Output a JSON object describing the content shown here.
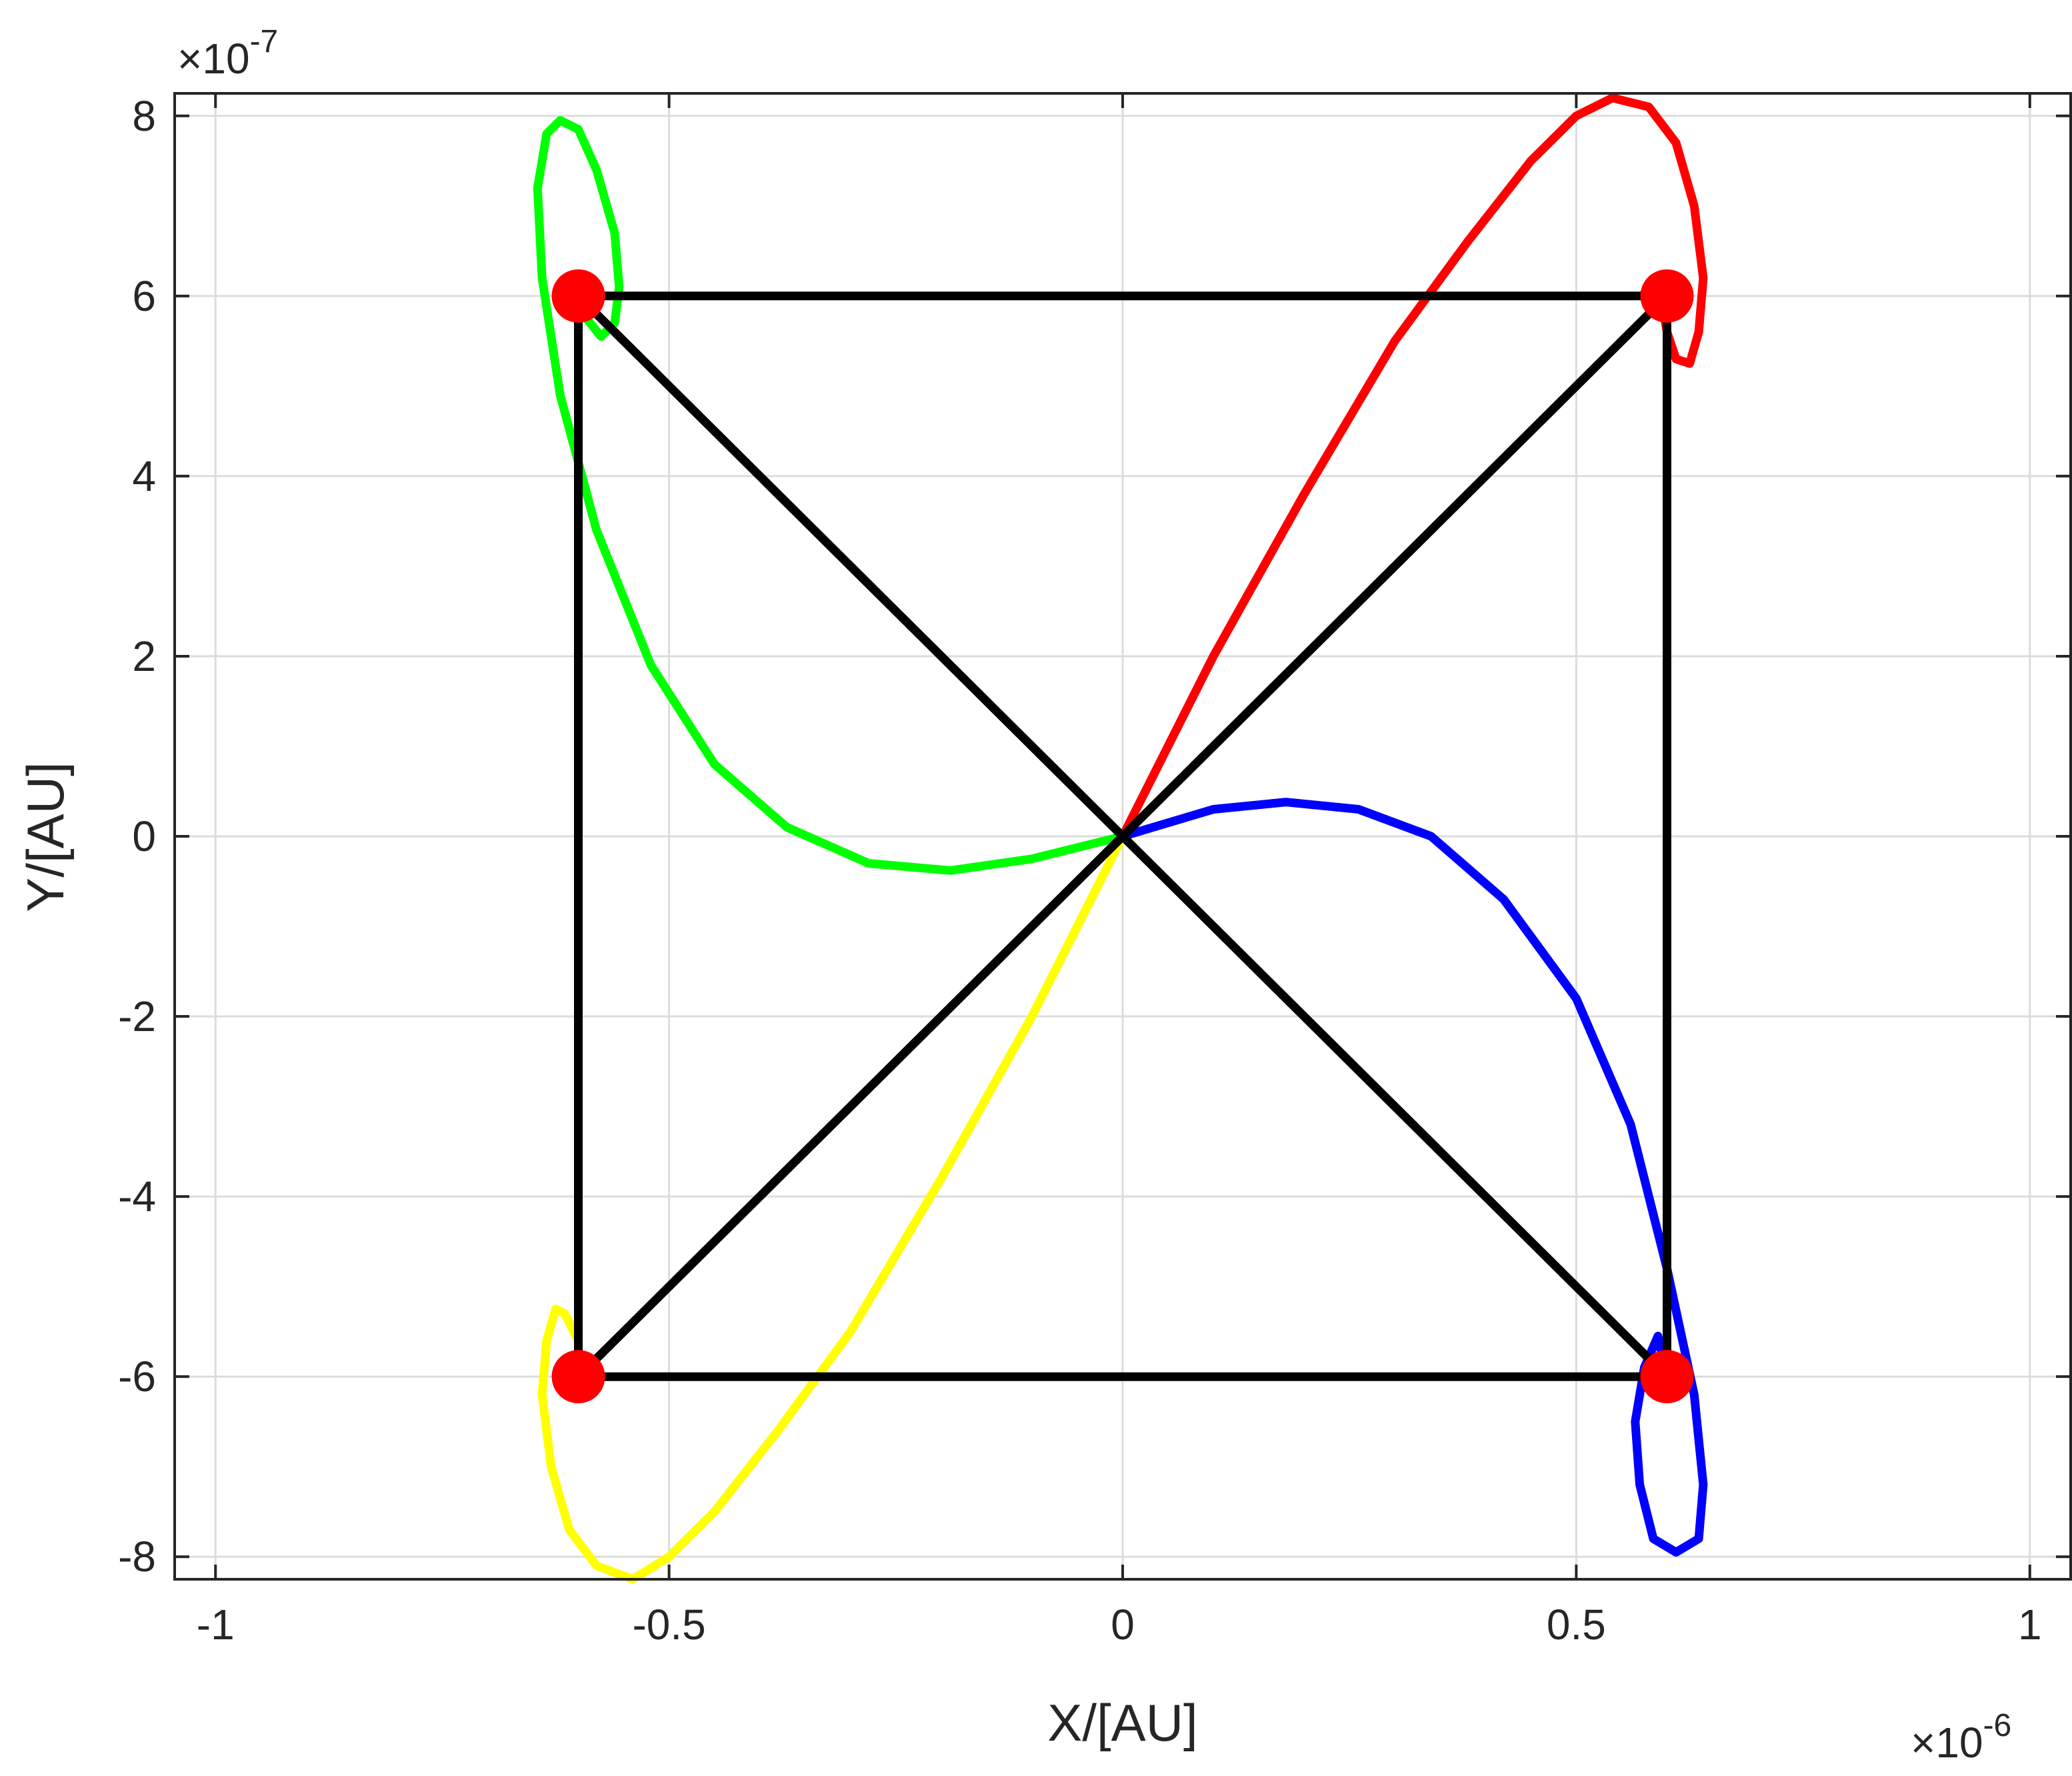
{
  "chart_data": {
    "type": "line",
    "xlabel": "X/[AU]",
    "ylabel": "Y/[AU]",
    "x_exponent": {
      "base": "×10",
      "power": "-6"
    },
    "y_exponent": {
      "base": "×10",
      "power": "-7"
    },
    "xlim": [
      -1.045,
      1.045
    ],
    "ylim": [
      -8.25,
      8.25
    ],
    "x_ticks": [
      -1,
      -0.5,
      0,
      0.5,
      1
    ],
    "x_tick_labels": [
      "-1",
      "-0.5",
      "0",
      "0.5",
      "1"
    ],
    "y_ticks": [
      -8,
      -6,
      -4,
      -2,
      0,
      2,
      4,
      6,
      8
    ],
    "y_tick_labels": [
      "-8",
      "-6",
      "-4",
      "-2",
      "0",
      "2",
      "4",
      "6",
      "8"
    ],
    "grid": true,
    "colors": {
      "green": "#00ff00",
      "red": "#ff0000",
      "blue": "#0000ff",
      "yellow": "#ffff00",
      "square": "#000000",
      "marker": "#ff0000",
      "grid": "#dcdcdc",
      "axis": "#262626"
    },
    "series": [
      {
        "color": "green",
        "x": [
          0,
          -0.1,
          -0.19,
          -0.28,
          -0.37,
          -0.45,
          -0.52,
          -0.58,
          -0.62,
          -0.64,
          -0.645,
          -0.635,
          -0.62,
          -0.6,
          -0.58,
          -0.56,
          -0.555,
          -0.56,
          -0.575,
          -0.595,
          -0.6
        ],
        "y": [
          0,
          -0.25,
          -0.38,
          -0.3,
          0.1,
          0.8,
          1.9,
          3.4,
          4.9,
          6.2,
          7.2,
          7.8,
          7.95,
          7.85,
          7.4,
          6.7,
          6.1,
          5.7,
          5.55,
          5.8,
          6.0
        ]
      },
      {
        "color": "red",
        "x": [
          0,
          0.05,
          0.1,
          0.15,
          0.2,
          0.3,
          0.38,
          0.45,
          0.5,
          0.54,
          0.58,
          0.61,
          0.63,
          0.64,
          0.635,
          0.625,
          0.61,
          0.6,
          0.595,
          0.6
        ],
        "y": [
          0,
          1.0,
          2.0,
          2.9,
          3.8,
          5.5,
          6.6,
          7.5,
          8.0,
          8.2,
          8.1,
          7.7,
          7.0,
          6.2,
          5.6,
          5.25,
          5.3,
          5.6,
          5.9,
          6.0
        ]
      },
      {
        "color": "blue",
        "x": [
          0,
          0.1,
          0.18,
          0.26,
          0.34,
          0.42,
          0.5,
          0.56,
          0.6,
          0.63,
          0.64,
          0.635,
          0.61,
          0.585,
          0.57,
          0.565,
          0.575,
          0.59,
          0.6
        ],
        "y": [
          0,
          0.3,
          0.38,
          0.3,
          0.0,
          -0.7,
          -1.8,
          -3.2,
          -4.8,
          -6.2,
          -7.2,
          -7.8,
          -7.95,
          -7.8,
          -7.2,
          -6.5,
          -5.9,
          -5.55,
          -6.0
        ]
      },
      {
        "color": "yellow",
        "x": [
          0,
          -0.05,
          -0.1,
          -0.15,
          -0.2,
          -0.3,
          -0.38,
          -0.45,
          -0.5,
          -0.54,
          -0.58,
          -0.61,
          -0.63,
          -0.64,
          -0.635,
          -0.625,
          -0.615,
          -0.6,
          -0.6
        ],
        "y": [
          0,
          -1.0,
          -2.0,
          -2.9,
          -3.8,
          -5.5,
          -6.6,
          -7.5,
          -8.0,
          -8.25,
          -8.1,
          -7.7,
          -7.0,
          -6.2,
          -5.6,
          -5.25,
          -5.3,
          -5.6,
          -6.0
        ]
      }
    ],
    "square": {
      "color": "square",
      "corners": [
        [
          -0.6,
          6
        ],
        [
          0.6,
          6
        ],
        [
          0.6,
          -6
        ],
        [
          -0.6,
          -6
        ]
      ],
      "diagonals": [
        [
          [
            -0.6,
            6
          ],
          [
            0.6,
            -6
          ]
        ],
        [
          [
            0.6,
            6
          ],
          [
            -0.6,
            -6
          ]
        ]
      ]
    },
    "markers": {
      "color": "marker",
      "points": [
        [
          -0.6,
          6
        ],
        [
          0.6,
          6
        ],
        [
          -0.6,
          -6
        ],
        [
          0.6,
          -6
        ]
      ]
    }
  }
}
